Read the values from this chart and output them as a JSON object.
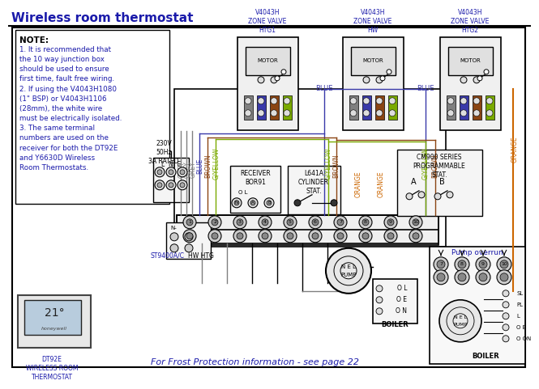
{
  "title": "Wireless room thermostat",
  "title_color": "#1a1aaa",
  "title_fontsize": 11,
  "bg_color": "#ffffff",
  "note_title": "NOTE:",
  "note_lines": [
    "1. It is recommended that",
    "the 10 way junction box",
    "should be used to ensure",
    "first time, fault free wiring.",
    "2. If using the V4043H1080",
    "(1\" BSP) or V4043H1106",
    "(28mm), the white wire",
    "must be electrically isolated.",
    "3. The same terminal",
    "numbers are used on the",
    "receiver for both the DT92E",
    "and Y6630D Wireless",
    "Room Thermostats."
  ],
  "supply_label": "230V\n50Hz\n3A RATED",
  "receiver_label": "RECEIVER\nBOR91",
  "cylinder_label": "L641A\nCYLINDER\nSTAT.",
  "cm900_label": "CM900 SERIES\nPROGRAMMABLE\nSTAT.",
  "pump_overrun_label": "Pump overrun",
  "boiler_label": "BOILER",
  "st9400_label": "ST9400A/C",
  "hw_htg_label": "HW HTG",
  "dt92e_label": "DT92E\nWIRELESS ROOM\nTHERMOSTAT",
  "frost_label": "For Frost Protection information - see page 22",
  "label_color": "#1a1aaa",
  "text_color": "#000000",
  "wire_grey": "#808080",
  "wire_blue": "#3a3aaa",
  "wire_brown": "#8b4513",
  "wire_orange": "#cc6600",
  "wire_gy": "#7aaa00",
  "wire_black": "#000000"
}
